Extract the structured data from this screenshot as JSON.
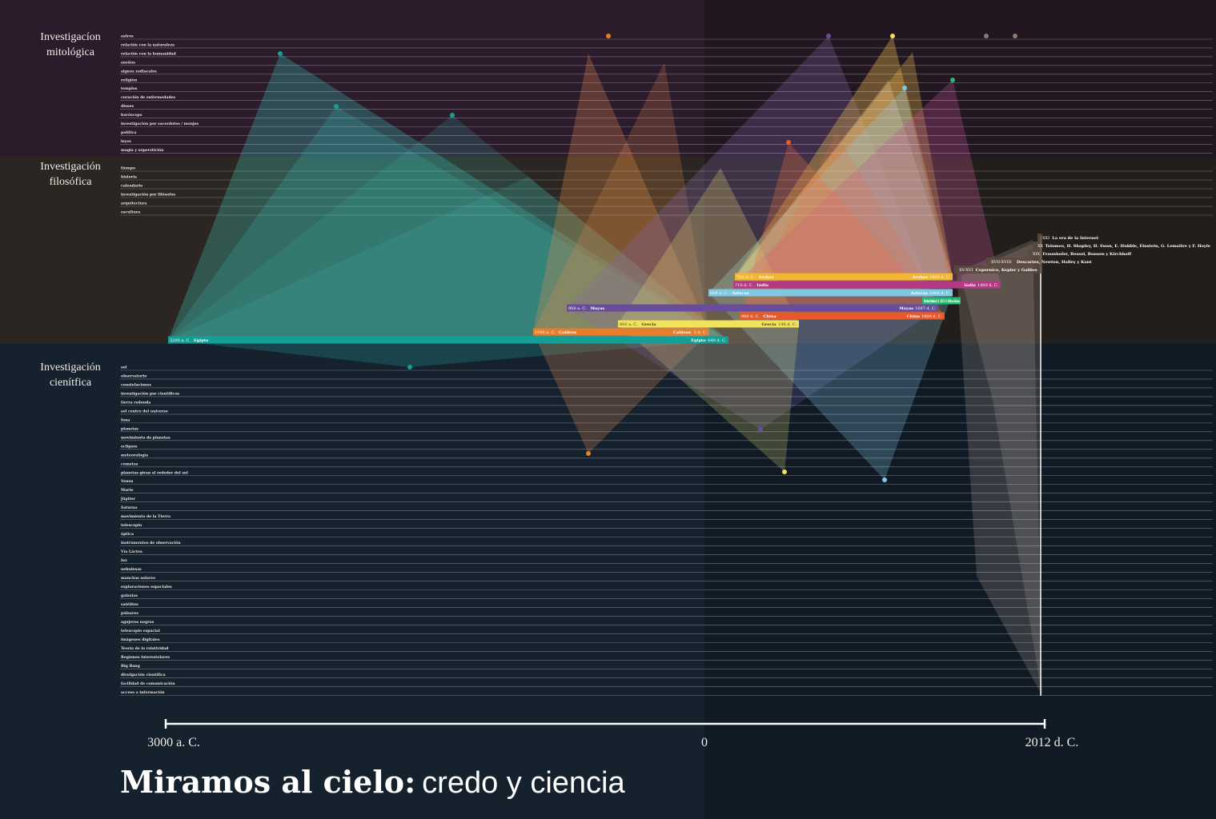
{
  "sections": [
    {
      "title": [
        "Investigacíon",
        "mitológica"
      ],
      "rows": [
        "astros",
        "relación con la naturaleza",
        "relación con la humanidad",
        "sueños",
        "signos zodiacales",
        "religión",
        "templos",
        "curación de enfermedades",
        "dioses",
        "horóscopo",
        "investigación por sacerdotes / monjes",
        "política",
        "leyes",
        "magia y superstición"
      ]
    },
    {
      "title": [
        "Investigación",
        "filosófica"
      ],
      "rows": [
        "tiempo",
        "historia",
        "calendario",
        "investigación por filósofos",
        "arquitectura",
        "escultura"
      ]
    },
    {
      "title": [
        "Investigación",
        "cienítfica"
      ],
      "rows": [
        "sol",
        "observatorio",
        "constelaciones",
        "investigación por científicos",
        "tierra redonda",
        "sol centro del universo",
        "luna",
        "planetas",
        "movimiento de planetas",
        "eclipses",
        "meteorología",
        "cometas",
        "planetas giran al rededor del sol",
        "Venus",
        "Marte",
        "Júpiter",
        "Saturno",
        "movimiento de la Tierra",
        "telescopio",
        "óptica",
        "instrumentos de observación",
        "Vía Láctea",
        "luz",
        "nebulosas",
        "manchas solares",
        "exploraciones espaciales",
        "galaxias",
        "satélites",
        "púlsares",
        "agujeros negros",
        "telescopio espacial",
        "imágenes digitales",
        "Teoría de la relatividad",
        "Regiones interestelares",
        "Big Bang",
        "divulgación científica",
        "facilidad de comunicación",
        "acceso a información"
      ]
    }
  ],
  "civilizations": [
    {
      "name": "Árabes",
      "start_label": "750 d. C.",
      "end_label": "1600 d. C.",
      "color": "#f2b632"
    },
    {
      "name": "India",
      "start_label": "710 d. C.",
      "end_label": "1400 d. C.",
      "color": "#b53a86"
    },
    {
      "name": "Aztecas",
      "start_label": "600 d. C.",
      "end_label": "1900 d. C.",
      "color": "#7ec8e3"
    },
    {
      "name": "Incas",
      "start_label": "1400 d. C.",
      "end_label": "1500 d. C.",
      "color": "#2bb673"
    },
    {
      "name": "Mayas",
      "start_label": "900 a. C.",
      "end_label": "1697 d. C.",
      "color": "#6a4c9c"
    },
    {
      "name": "China",
      "start_label": "960 d. C.",
      "end_label": "1600 d. C.",
      "color": "#e8582a"
    },
    {
      "name": "Grecia",
      "start_label": "600 a. C.",
      "end_label": "146 d. C.",
      "color": "#f2e25a"
    },
    {
      "name": "Caldeos",
      "start_label": "1900 a. C.",
      "end_label": "1 d. C.",
      "color": "#e87d2a"
    },
    {
      "name": "Egipto",
      "start_label": "3200 a. C.",
      "end_label": "640 d. C.",
      "color": "#12a096"
    }
  ],
  "eras": [
    {
      "century": "XXI",
      "text": "La era de la Internet"
    },
    {
      "century": "XX",
      "text": "Tolomeo, H. Shapley, H. Swan, E. Hubble, Einstein, G. Lemaître y F. Hoyle"
    },
    {
      "century": "XIX",
      "text": "Fraunhofer, Bessel, Bunsen y Kirchhoff"
    },
    {
      "century": "XVII-XVIII",
      "text": "Descartes, Newton, Halley y Kant"
    },
    {
      "century": "XV-XVI",
      "text": "Copernico, Kepler y Galileo"
    }
  ],
  "axis": {
    "ticks": [
      "3000 a. C.",
      "0",
      "2012 d. C."
    ]
  },
  "title": {
    "bold": "Miramos al cielo:",
    "regular": "credo y ciencia"
  }
}
